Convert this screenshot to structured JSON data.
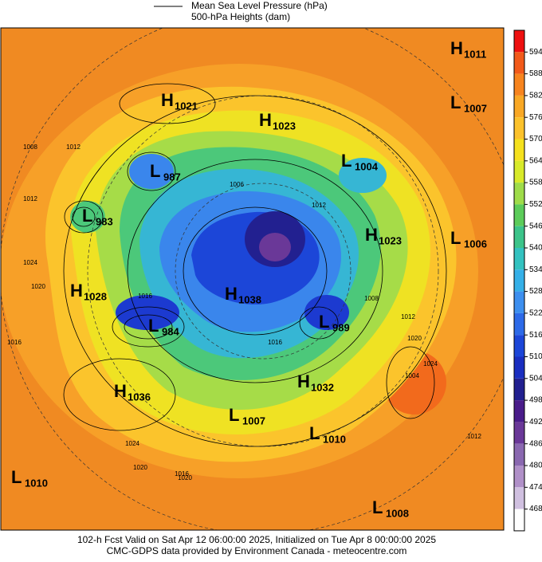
{
  "legend": {
    "line_label": "Mean Sea Level Pressure (hPa)",
    "fill_label": "500-hPa Heights (dam)"
  },
  "colorbar": {
    "labels": [
      "594",
      "588",
      "582",
      "576",
      "570",
      "564",
      "558",
      "552",
      "546",
      "540",
      "534",
      "528",
      "522",
      "516",
      "510",
      "504",
      "498",
      "492",
      "486",
      "480",
      "474",
      "468"
    ]
  },
  "centers": [
    {
      "letter": "H",
      "value": "1011"
    },
    {
      "letter": "L",
      "value": "1007"
    },
    {
      "letter": "H",
      "value": "1021"
    },
    {
      "letter": "H",
      "value": "1023"
    },
    {
      "letter": "L",
      "value": "987"
    },
    {
      "letter": "L",
      "value": "1004"
    },
    {
      "letter": "L",
      "value": "983"
    },
    {
      "letter": "H",
      "value": "1023"
    },
    {
      "letter": "L",
      "value": "1006"
    },
    {
      "letter": "H",
      "value": "1028"
    },
    {
      "letter": "H",
      "value": "1038"
    },
    {
      "letter": "L",
      "value": "984"
    },
    {
      "letter": "L",
      "value": "989"
    },
    {
      "letter": "H",
      "value": "1032"
    },
    {
      "letter": "H",
      "value": "1036"
    },
    {
      "letter": "L",
      "value": "1007"
    },
    {
      "letter": "L",
      "value": "1010"
    },
    {
      "letter": "L",
      "value": "1010"
    },
    {
      "letter": "L",
      "value": "1008"
    }
  ],
  "contour_labels": [
    "1008",
    "1012",
    "1024",
    "1020",
    "1016",
    "1012",
    "1016",
    "1024",
    "1020",
    "1008",
    "1012",
    "1020",
    "1024",
    "1020",
    "1016",
    "1012",
    "1004",
    "1016",
    "1006",
    "1012"
  ],
  "footer": {
    "line1": "102-h Fcst Valid on Sat Apr 12 06:00:00 2025, Initialized on Tue Apr  8 00:00:00 2025",
    "line2": "CMC-GDPS data provided by Environment Canada - meteocentre.com"
  }
}
